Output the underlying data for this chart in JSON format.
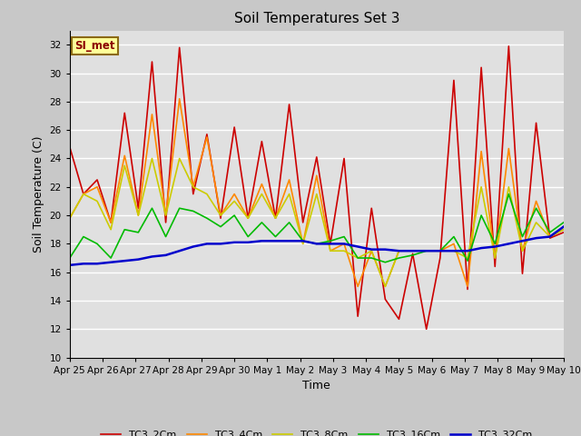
{
  "title": "Soil Temperatures Set 3",
  "xlabel": "Time",
  "ylabel": "Soil Temperature (C)",
  "ylim": [
    10,
    33
  ],
  "yticks": [
    10,
    12,
    14,
    16,
    18,
    20,
    22,
    24,
    26,
    28,
    30,
    32
  ],
  "annotation": "SI_met",
  "fig_bg_color": "#c8c8c8",
  "plot_bg_color": "#e0e0e0",
  "grid_color": "#ffffff",
  "series_order": [
    "TC3_2Cm",
    "TC3_4Cm",
    "TC3_8Cm",
    "TC3_16Cm",
    "TC3_32Cm"
  ],
  "series_colors": {
    "TC3_2Cm": "#cc0000",
    "TC3_4Cm": "#ff8800",
    "TC3_8Cm": "#cccc00",
    "TC3_16Cm": "#00bb00",
    "TC3_32Cm": "#0000cc"
  },
  "series_lw": {
    "TC3_2Cm": 1.2,
    "TC3_4Cm": 1.2,
    "TC3_8Cm": 1.2,
    "TC3_16Cm": 1.2,
    "TC3_32Cm": 1.8
  },
  "x_labels": [
    "Apr 25",
    "Apr 26",
    "Apr 27",
    "Apr 28",
    "Apr 29",
    "Apr 30",
    "May 1",
    "May 2",
    "May 3",
    "May 4",
    "May 5",
    "May 6",
    "May 7",
    "May 8",
    "May 9",
    "May 10"
  ],
  "TC3_2Cm": [
    24.8,
    21.5,
    22.5,
    19.5,
    27.2,
    20.5,
    30.8,
    19.5,
    31.8,
    21.5,
    25.7,
    19.8,
    26.2,
    19.8,
    25.2,
    19.8,
    27.8,
    19.5,
    24.1,
    18.0,
    24.0,
    12.9,
    20.5,
    14.1,
    12.7,
    17.3,
    12.0,
    17.0,
    29.5,
    14.8,
    30.4,
    16.4,
    31.9,
    15.9,
    26.5,
    18.4,
    18.8
  ],
  "TC3_4Cm": [
    19.8,
    21.5,
    22.0,
    19.5,
    24.2,
    20.0,
    27.1,
    20.0,
    28.2,
    22.0,
    25.5,
    20.0,
    21.5,
    19.8,
    22.2,
    19.8,
    22.5,
    18.0,
    22.8,
    17.5,
    18.0,
    15.0,
    17.5,
    15.0,
    17.5,
    17.5,
    17.5,
    17.5,
    18.0,
    15.0,
    24.5,
    17.0,
    24.7,
    17.5,
    21.0,
    18.5,
    19.0
  ],
  "TC3_8Cm": [
    19.8,
    21.5,
    21.0,
    19.0,
    23.5,
    20.0,
    24.0,
    20.0,
    24.0,
    22.0,
    21.5,
    20.0,
    21.0,
    19.8,
    21.5,
    19.8,
    21.5,
    18.0,
    21.5,
    17.5,
    17.5,
    17.0,
    17.5,
    15.0,
    17.5,
    17.5,
    17.5,
    17.5,
    17.5,
    17.0,
    22.0,
    17.0,
    22.0,
    17.5,
    19.5,
    18.5,
    19.0
  ],
  "TC3_16Cm": [
    17.0,
    18.5,
    18.0,
    17.0,
    19.0,
    18.8,
    20.5,
    18.5,
    20.5,
    20.3,
    19.8,
    19.2,
    20.0,
    18.5,
    19.5,
    18.5,
    19.5,
    18.2,
    18.0,
    18.2,
    18.5,
    17.0,
    17.0,
    16.7,
    17.0,
    17.2,
    17.5,
    17.5,
    18.5,
    16.8,
    20.0,
    18.0,
    21.5,
    18.5,
    20.5,
    18.8,
    19.5
  ],
  "TC3_32Cm": [
    16.5,
    16.6,
    16.6,
    16.7,
    16.8,
    16.9,
    17.1,
    17.2,
    17.5,
    17.8,
    18.0,
    18.0,
    18.1,
    18.1,
    18.2,
    18.2,
    18.2,
    18.2,
    18.0,
    18.0,
    18.0,
    17.8,
    17.6,
    17.6,
    17.5,
    17.5,
    17.5,
    17.5,
    17.5,
    17.5,
    17.7,
    17.8,
    18.0,
    18.2,
    18.4,
    18.5,
    19.2
  ]
}
